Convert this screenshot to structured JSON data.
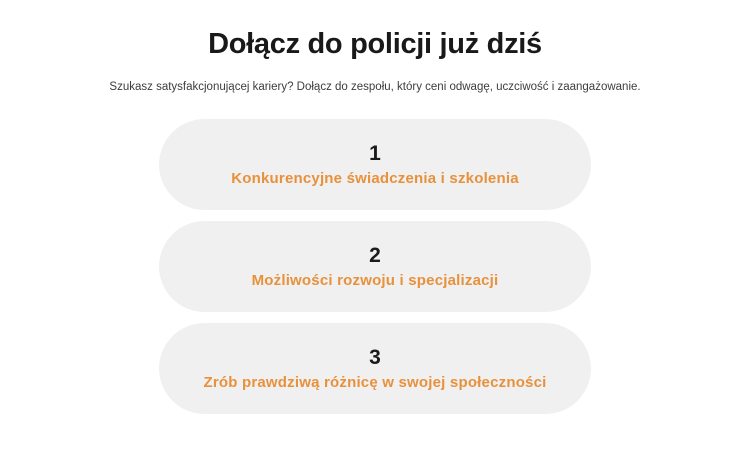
{
  "section": {
    "title": "Dołącz do policji już dziś",
    "subtitle": "Szukasz satysfakcjonującej kariery? Dołącz do zespołu, który ceni odwagę, uczciwość i zaangażowanie.",
    "steps": [
      {
        "number": "1",
        "label": "Konkurencyjne świadczenia i szkolenia"
      },
      {
        "number": "2",
        "label": "Możliwości rozwoju i specjalizacji"
      },
      {
        "number": "3",
        "label": "Zrób prawdziwą różnicę w swojej społeczności"
      }
    ]
  },
  "colors": {
    "accent_orange": "#e8913c",
    "card_background": "#f0f0f0",
    "heading_text": "#191919",
    "subtitle_text": "#3d3d3d",
    "page_background": "#ffffff"
  }
}
